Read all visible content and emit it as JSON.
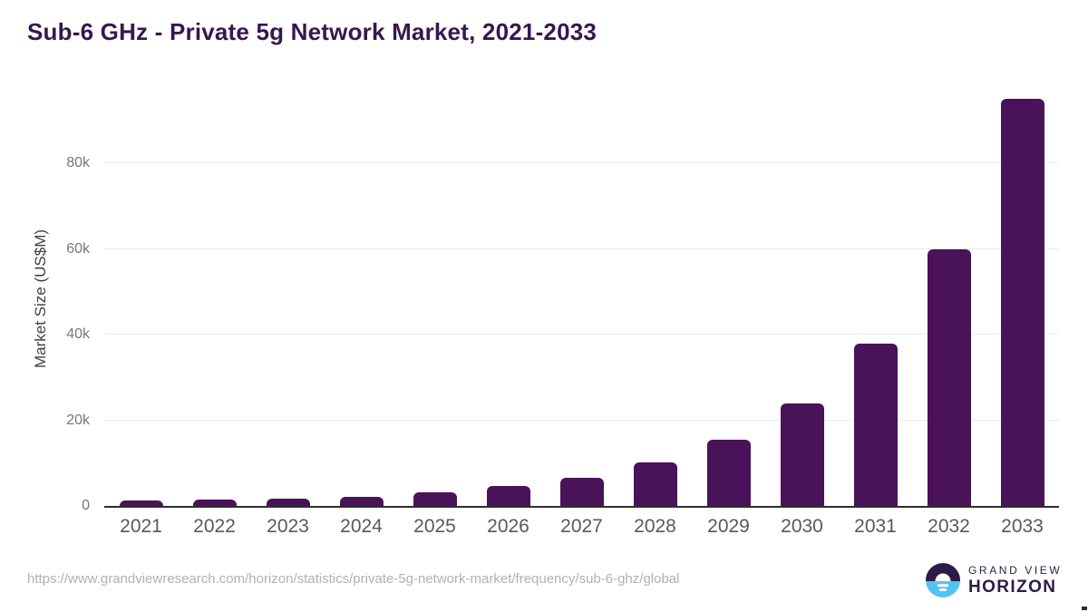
{
  "title": "Sub-6 GHz - Private 5g Network Market, 2021-2033",
  "footer": {
    "source_url": "https://www.grandviewresearch.com/horizon/statistics/private-5g-network-market/frequency/sub-6-ghz/global",
    "logo": {
      "line1": "GRAND VIEW",
      "line2": "HORIZON"
    }
  },
  "colors": {
    "bar": "#4a1259",
    "title": "#37174f",
    "axis_line": "#2e2e2e",
    "gridline": "#ebebeb",
    "ytick_label": "#777777",
    "xtick_label": "#595959",
    "y_axis_title": "#404040",
    "footer_text": "#b1b1b1",
    "logo_dark": "#2c1c47",
    "logo_blue": "#55c3f2"
  },
  "chart_data": {
    "type": "bar",
    "title": "Sub-6 GHz - Private 5g Network Market, 2021-2033",
    "categories": [
      "2021",
      "2022",
      "2023",
      "2024",
      "2025",
      "2026",
      "2027",
      "2028",
      "2029",
      "2030",
      "2031",
      "2032",
      "2033"
    ],
    "values": [
      1200,
      1500,
      1800,
      2100,
      3100,
      4600,
      6500,
      10200,
      15500,
      24000,
      38000,
      60000,
      95000
    ],
    "xlabel": "",
    "ylabel": "Market Size (US$M)",
    "ylim": [
      0,
      97000
    ],
    "yticks": [
      {
        "label": "0",
        "value": 0
      },
      {
        "label": "20k",
        "value": 20000
      },
      {
        "label": "40k",
        "value": 40000
      },
      {
        "label": "60k",
        "value": 60000
      },
      {
        "label": "80k",
        "value": 80000
      }
    ],
    "grid": true,
    "legend": false
  }
}
